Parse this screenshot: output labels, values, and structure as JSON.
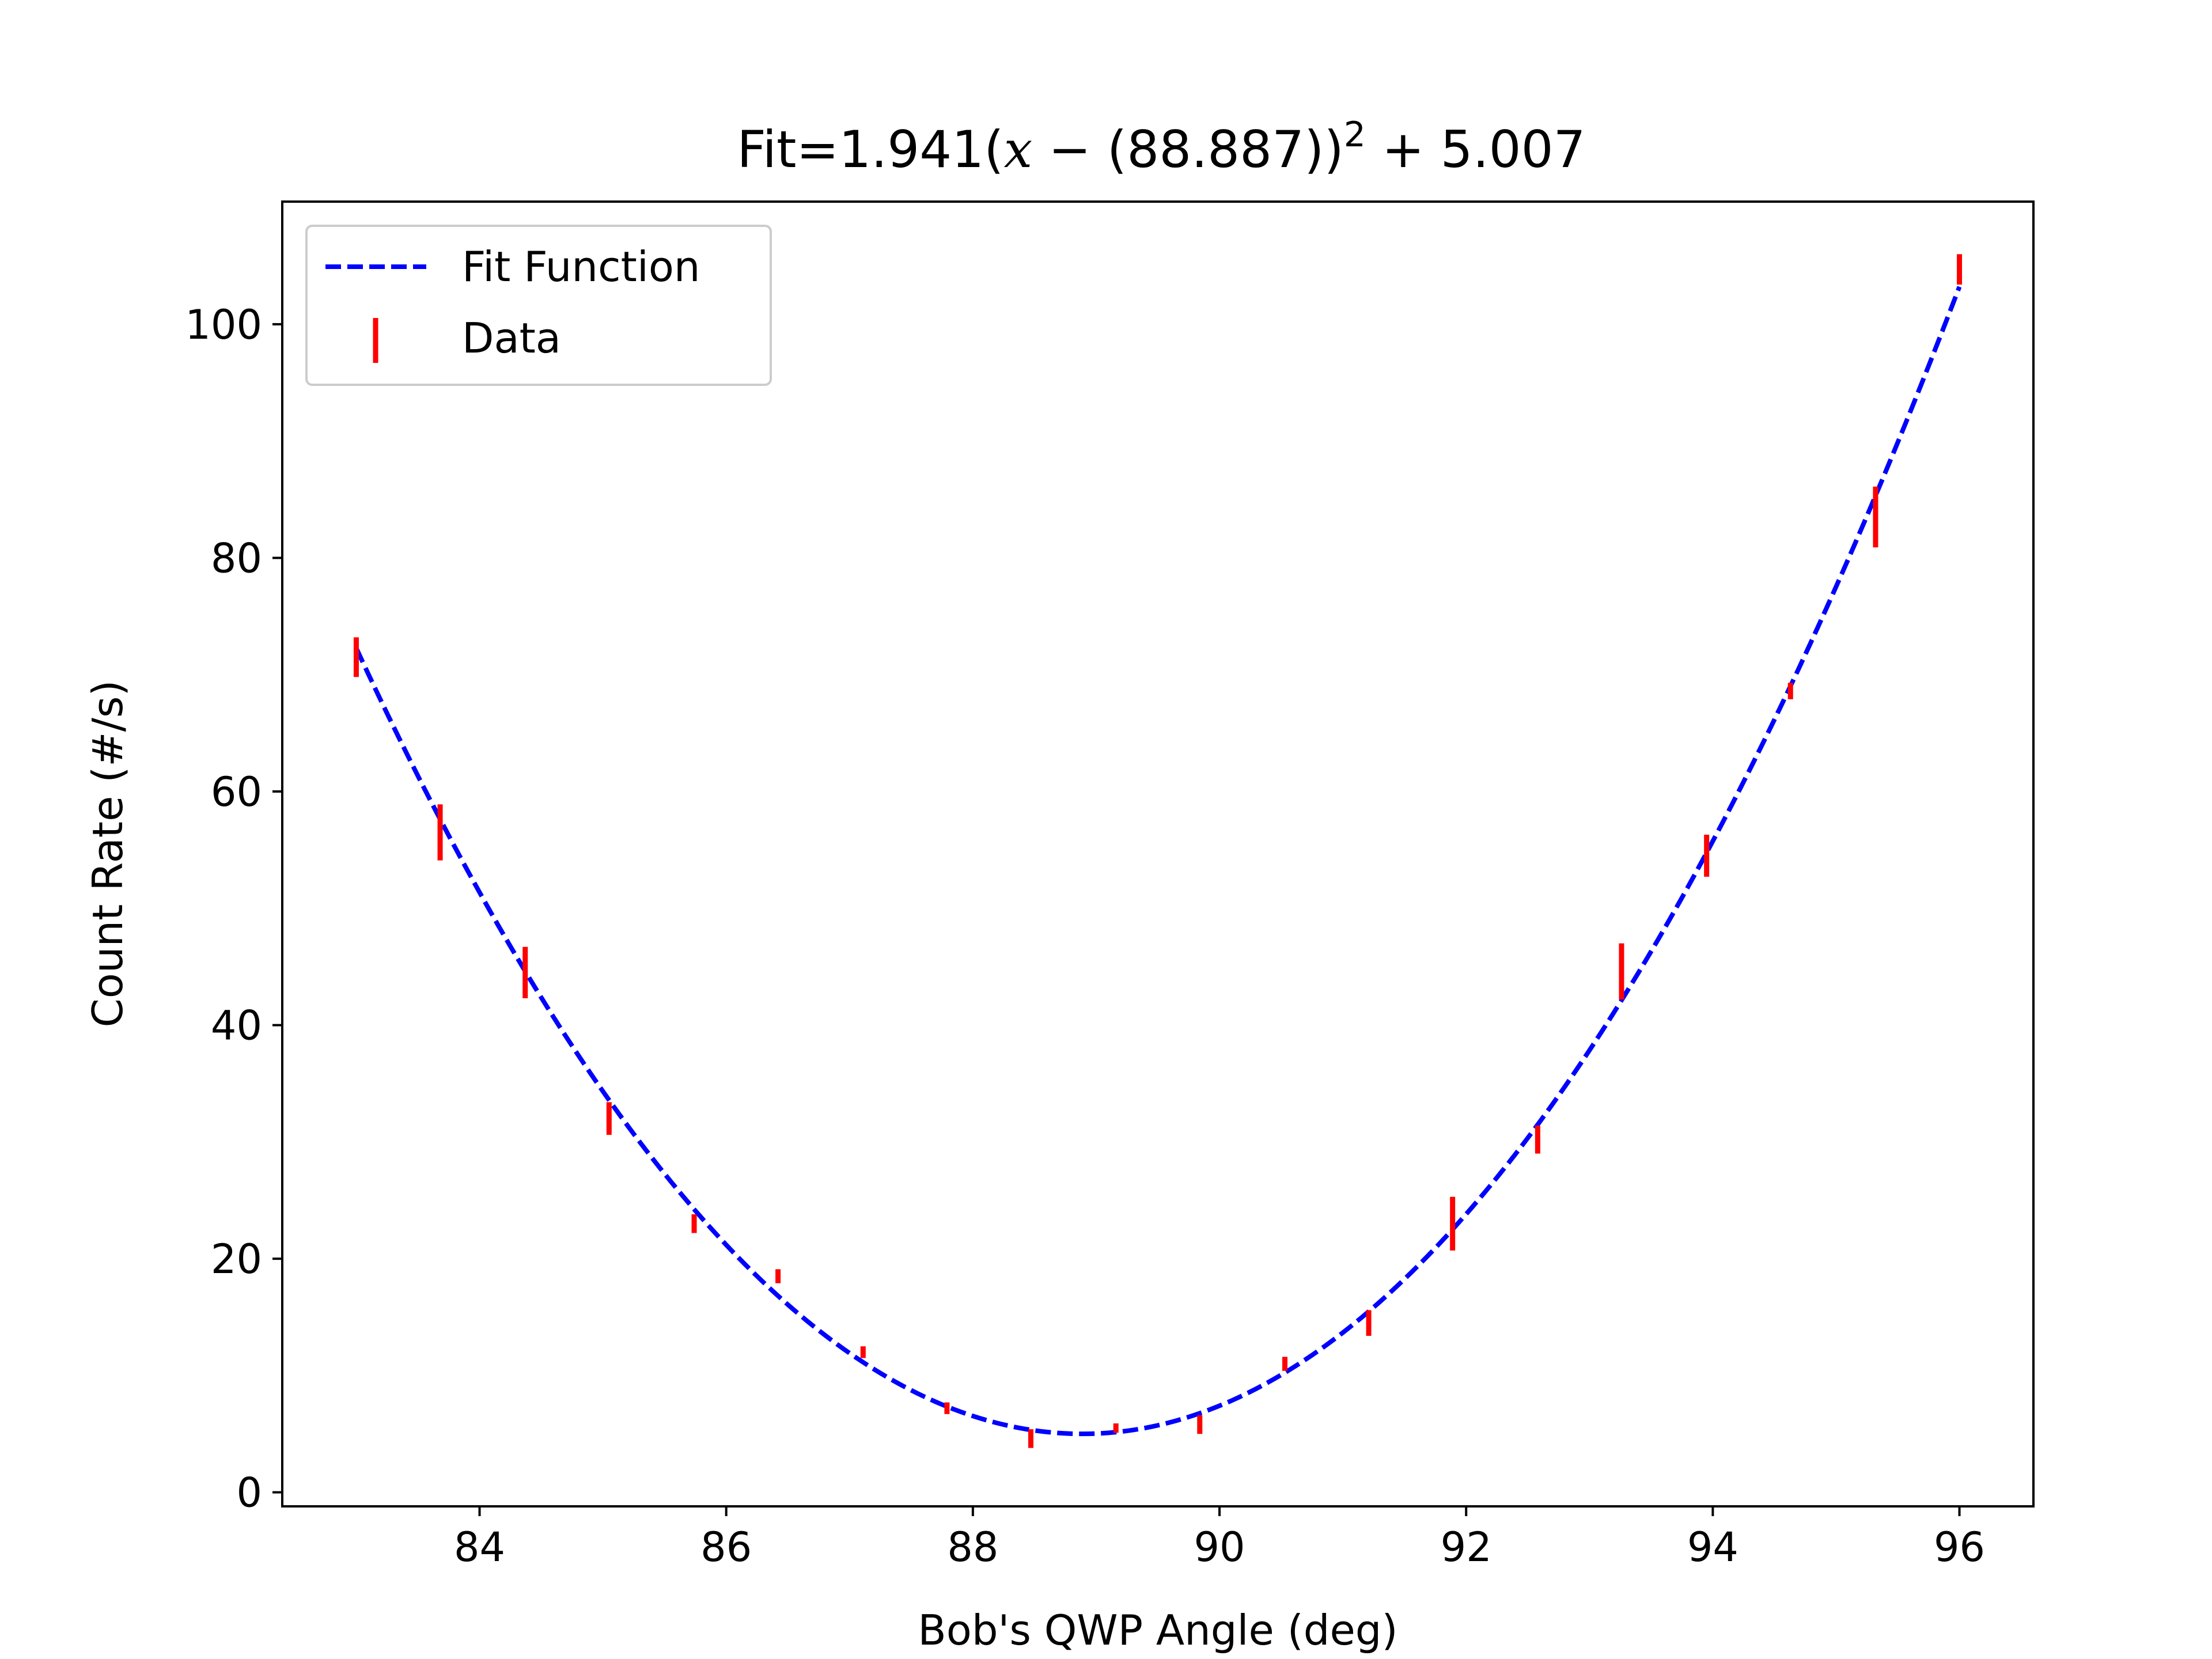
{
  "chart_data": {
    "type": "scatter",
    "title": {
      "prefix": "Fit=1.941(",
      "var": "x",
      "mid": " − (88.887))",
      "exp": "2",
      "suffix": " + 5.007"
    },
    "xlabel": "Bob's QWP Angle (deg)",
    "ylabel": "Count Rate (#/s)",
    "xlim": [
      82.4,
      96.6
    ],
    "ylim": [
      -1.2,
      110.5
    ],
    "xticks": [
      84,
      86,
      88,
      90,
      92,
      94,
      96
    ],
    "yticks": [
      0,
      20,
      40,
      60,
      80,
      100
    ],
    "grid": false,
    "legend_position": "upper-left",
    "fit": {
      "name": "Fit Function",
      "a": 1.941,
      "x0": 88.887,
      "c": 5.007,
      "color": "#0000ff",
      "style": "dashed"
    },
    "series": [
      {
        "name": "Data",
        "color": "#ff0000",
        "marker": "vertical-errorbar",
        "points": [
          {
            "x": 83.0,
            "y": 71.5,
            "err": 1.7
          },
          {
            "x": 83.68,
            "y": 56.5,
            "err": 2.4
          },
          {
            "x": 84.37,
            "y": 44.5,
            "err": 2.2
          },
          {
            "x": 85.05,
            "y": 32.0,
            "err": 1.4
          },
          {
            "x": 85.74,
            "y": 23.0,
            "err": 0.8
          },
          {
            "x": 86.42,
            "y": 18.5,
            "err": 0.6
          },
          {
            "x": 87.11,
            "y": 12.0,
            "err": 0.5
          },
          {
            "x": 87.79,
            "y": 7.2,
            "err": 0.5
          },
          {
            "x": 88.47,
            "y": 4.6,
            "err": 0.8
          },
          {
            "x": 89.16,
            "y": 5.5,
            "err": 0.4
          },
          {
            "x": 89.84,
            "y": 5.8,
            "err": 0.8
          },
          {
            "x": 90.53,
            "y": 11.0,
            "err": 0.6
          },
          {
            "x": 91.21,
            "y": 14.5,
            "err": 1.1
          },
          {
            "x": 91.89,
            "y": 23.0,
            "err": 2.3
          },
          {
            "x": 92.58,
            "y": 30.2,
            "err": 1.2
          },
          {
            "x": 93.26,
            "y": 44.6,
            "err": 2.4
          },
          {
            "x": 93.95,
            "y": 54.5,
            "err": 1.8
          },
          {
            "x": 94.63,
            "y": 68.6,
            "err": 0.7
          },
          {
            "x": 95.32,
            "y": 83.5,
            "err": 2.6
          },
          {
            "x": 96.0,
            "y": 104.7,
            "err": 1.3
          }
        ]
      }
    ]
  }
}
